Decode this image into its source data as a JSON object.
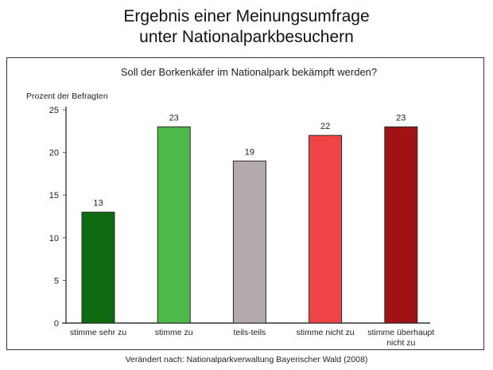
{
  "header": {
    "title_line1": "Ergebnis einer Meinungsumfrage",
    "title_line2": "unter Nationalparkbesuchern"
  },
  "footer": {
    "source": "Verändert nach: Nationalparkverwaltung Bayerischer Wald (2008)"
  },
  "chart_data": {
    "type": "bar",
    "title": "Soll der Borkenkäfer im Nationalpark bekämpft werden?",
    "xlabel": "",
    "ylabel": "Prozent der Befragten",
    "ylim": [
      0,
      25
    ],
    "yticks": [
      0,
      5,
      10,
      15,
      20,
      25
    ],
    "grid": false,
    "categories": [
      [
        "stimme sehr zu"
      ],
      [
        "stimme zu"
      ],
      [
        "teils-teils"
      ],
      [
        "stimme nicht zu"
      ],
      [
        "stimme überhaupt",
        "nicht zu"
      ]
    ],
    "values": [
      13,
      23,
      19,
      22,
      23
    ],
    "value_labels": [
      "13",
      "23",
      "19",
      "22",
      "23"
    ],
    "colors": [
      "#0e6a0e",
      "#4cb948",
      "#b3aaab",
      "#ee4446",
      "#a01214"
    ]
  }
}
